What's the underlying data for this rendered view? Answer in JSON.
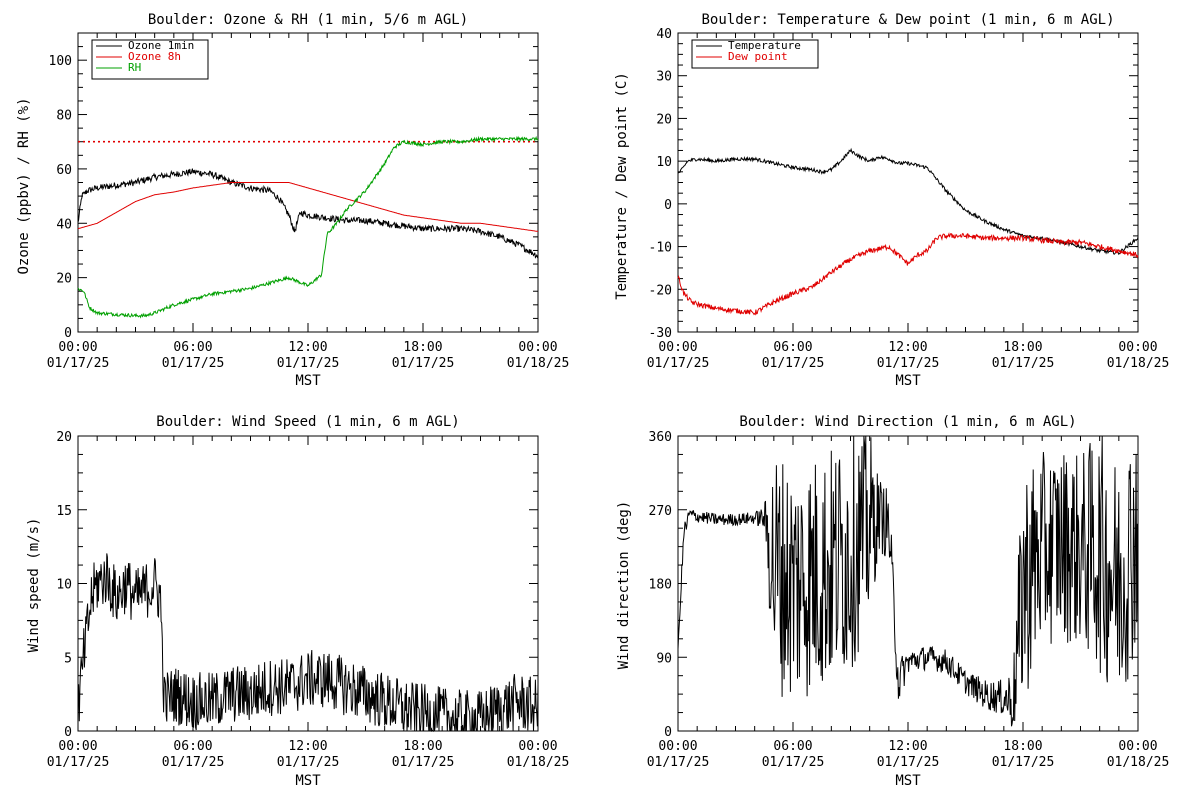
{
  "figure": {
    "x_tick_times": [
      "00:00",
      "06:00",
      "12:00",
      "18:00",
      "00:00"
    ],
    "x_tick_dates": [
      "01/17/25",
      "01/17/25",
      "01/17/25",
      "01/17/25",
      "01/18/25"
    ]
  },
  "chart_data": [
    {
      "type": "line",
      "title": "Boulder: Ozone & RH (1 min, 5/6 m AGL)",
      "xlabel": "MST",
      "ylabel": "Ozone (ppbv) / RH (%)",
      "x_unit": "hours since 01/17/25 00:00 MST",
      "xlim": [
        0,
        24
      ],
      "ylim": [
        0,
        110
      ],
      "yticks": [
        0,
        20,
        40,
        60,
        80,
        100
      ],
      "grid": false,
      "legend_position": "top-left",
      "reference_lines": [
        {
          "y": 70,
          "color": "#e00000",
          "style": "dotted"
        }
      ],
      "series": [
        {
          "name": "Ozone 1min",
          "color": "#000000",
          "noise": 1.2,
          "x": [
            0,
            0.2,
            0.5,
            1,
            2,
            3,
            4,
            5,
            6,
            7,
            8,
            9,
            10,
            10.5,
            11,
            11.3,
            11.6,
            12,
            13,
            14,
            15,
            16,
            17,
            18,
            19,
            20,
            21,
            22,
            23,
            24
          ],
          "y": [
            40,
            50,
            52,
            53,
            54,
            55,
            57,
            58,
            59,
            58,
            55,
            53,
            52,
            49,
            43,
            37,
            44,
            43,
            42,
            41,
            41,
            40,
            39,
            38,
            38,
            38,
            37,
            35,
            32,
            28
          ]
        },
        {
          "name": "Ozone 8h",
          "color": "#e00000",
          "noise": 0,
          "x": [
            0,
            1,
            2,
            3,
            4,
            5,
            6,
            7,
            8,
            9,
            10,
            11,
            12,
            13,
            14,
            15,
            16,
            17,
            18,
            19,
            20,
            21,
            22,
            23,
            24
          ],
          "y": [
            38,
            40,
            44,
            48,
            50.5,
            51.5,
            53,
            54,
            55,
            55,
            55,
            55,
            53,
            51,
            49,
            47,
            45,
            43,
            42,
            41,
            40,
            40,
            39,
            38,
            37
          ]
        },
        {
          "name": "RH",
          "color": "#00a000",
          "noise": 0.6,
          "x": [
            0,
            0.3,
            0.6,
            1,
            2,
            3,
            3.5,
            4,
            5,
            6,
            7,
            8,
            9,
            10,
            11,
            12,
            12.7,
            13,
            13.5,
            14,
            15,
            16,
            16.5,
            17,
            18,
            19,
            20,
            21,
            22,
            23,
            24
          ],
          "y": [
            16,
            15,
            9,
            7,
            6.5,
            6,
            6,
            7,
            10,
            12,
            14,
            15,
            16,
            18,
            20,
            17,
            21,
            36,
            40,
            45,
            52,
            62,
            68,
            70,
            69,
            70,
            70,
            71,
            71,
            71,
            71
          ]
        }
      ]
    },
    {
      "type": "line",
      "title": "Boulder: Temperature & Dew point (1 min, 6 m AGL)",
      "xlabel": "MST",
      "ylabel": "Temperature / Dew point (C)",
      "x_unit": "hours since 01/17/25 00:00 MST",
      "xlim": [
        0,
        24
      ],
      "ylim": [
        -30,
        40
      ],
      "yticks": [
        -30,
        -20,
        -10,
        0,
        10,
        20,
        30,
        40
      ],
      "grid": false,
      "legend_position": "top-left",
      "series": [
        {
          "name": "Temperature",
          "color": "#000000",
          "noise": 0.4,
          "x": [
            0,
            0.2,
            0.5,
            1,
            2,
            3,
            4,
            5,
            6,
            7,
            7.5,
            8,
            8.5,
            9,
            9.5,
            10,
            10.5,
            11,
            11.5,
            12,
            13,
            14,
            15,
            16,
            17,
            18,
            19,
            20,
            21,
            22,
            23,
            24
          ],
          "y": [
            7,
            8,
            10,
            10.5,
            10,
            10.5,
            10.5,
            9.5,
            8.5,
            8,
            7.5,
            8,
            10,
            12.5,
            11,
            10,
            11,
            10.5,
            9.5,
            9.5,
            8.5,
            3,
            -1.5,
            -4,
            -6,
            -7.5,
            -8,
            -9,
            -10,
            -11,
            -11.5,
            -8
          ]
        },
        {
          "name": "Dew point",
          "color": "#e00000",
          "noise": 0.6,
          "x": [
            0,
            0.3,
            0.7,
            1,
            2,
            3,
            4,
            5,
            6,
            7,
            8,
            9,
            10,
            11,
            11.5,
            12,
            12.5,
            13,
            13.5,
            14,
            15,
            16,
            17,
            18,
            19,
            20,
            21,
            22,
            23,
            24
          ],
          "y": [
            -17,
            -21,
            -23,
            -23.5,
            -24.5,
            -25,
            -25.5,
            -23,
            -21,
            -19.5,
            -16,
            -13,
            -11,
            -10,
            -12,
            -14,
            -12,
            -11,
            -8,
            -7.5,
            -7.5,
            -8,
            -8,
            -8,
            -8.5,
            -9,
            -9,
            -10,
            -11,
            -12
          ]
        }
      ]
    },
    {
      "type": "line",
      "title": "Boulder: Wind Speed (1 min, 6 m AGL)",
      "xlabel": "MST",
      "ylabel": "Wind speed (m/s)",
      "x_unit": "hours since 01/17/25 00:00 MST",
      "xlim": [
        0,
        24
      ],
      "ylim": [
        0,
        20
      ],
      "yticks": [
        0,
        5,
        10,
        15,
        20
      ],
      "grid": false,
      "series": [
        {
          "name": "",
          "color": "#000000",
          "noise": 2.0,
          "x": [
            0,
            0.3,
            0.7,
            1,
            1.5,
            2,
            2.5,
            3,
            3.5,
            4,
            4.3,
            4.5,
            5,
            6,
            7,
            8,
            9,
            10,
            11,
            12,
            13,
            14,
            15,
            16,
            17,
            18,
            19,
            20,
            21,
            22,
            23,
            24
          ],
          "y": [
            1.5,
            5,
            9,
            10,
            10.5,
            9,
            10,
            9,
            9.5,
            10,
            9,
            2,
            2.5,
            2,
            2,
            2.5,
            2.5,
            3,
            3,
            3.5,
            3.5,
            3,
            2.5,
            2,
            1.5,
            1.2,
            1,
            0.8,
            0.8,
            1.5,
            2,
            1.5
          ]
        }
      ]
    },
    {
      "type": "line",
      "title": "Boulder: Wind Direction (1 min, 6 m AGL)",
      "xlabel": "MST",
      "ylabel": "Wind direction (deg)",
      "x_unit": "hours since 01/17/25 00:00 MST",
      "xlim": [
        0,
        24
      ],
      "ylim": [
        0,
        360
      ],
      "yticks": [
        0,
        90,
        180,
        270,
        360
      ],
      "grid": false,
      "series": [
        {
          "name": "",
          "color": "#000000",
          "noise": 150,
          "x": [
            0,
            0.3,
            0.6,
            1,
            2,
            3,
            4,
            4.5,
            5,
            6,
            7,
            8,
            9,
            10,
            10.5,
            11,
            11.5,
            12,
            13,
            14,
            15,
            16,
            17,
            17.5,
            18,
            19,
            20,
            21,
            22,
            23,
            24
          ],
          "y": [
            100,
            240,
            265,
            262,
            258,
            258,
            260,
            260,
            200,
            180,
            190,
            200,
            220,
            250,
            265,
            250,
            60,
            85,
            90,
            85,
            60,
            45,
            40,
            40,
            180,
            220,
            230,
            220,
            220,
            180,
            250
          ],
          "noise_scale": [
            0,
            0.1,
            0.05,
            0.05,
            0.05,
            0.05,
            0.05,
            0.1,
            1,
            1,
            1,
            1,
            1,
            0.8,
            0.3,
            0.3,
            0.2,
            0.1,
            0.1,
            0.1,
            0.1,
            0.12,
            0.15,
            0.3,
            1,
            0.8,
            0.8,
            0.8,
            1,
            1,
            1
          ]
        }
      ]
    }
  ]
}
